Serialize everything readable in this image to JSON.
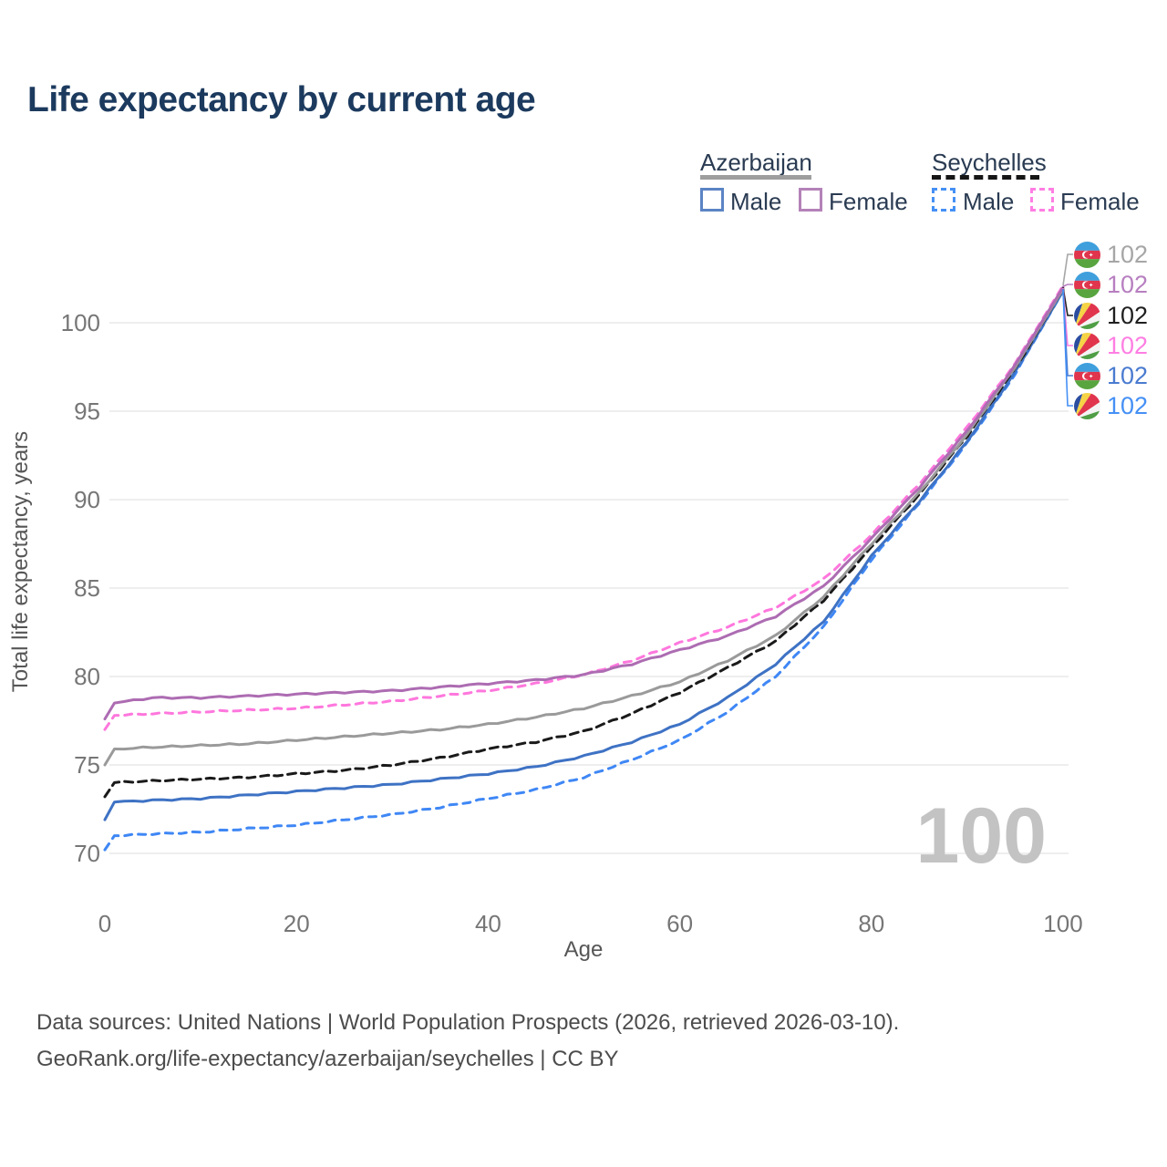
{
  "title": "Life expectancy by current age",
  "legend": {
    "groups": [
      {
        "country": "Azerbaijan",
        "line_style": "solid",
        "underline_color": "#9e9e9e",
        "items": [
          {
            "label": "Male",
            "color": "#5b84c4"
          },
          {
            "label": "Female",
            "color": "#b482b8"
          }
        ]
      },
      {
        "country": "Seychelles",
        "line_style": "dashed",
        "underline_color": "#161616",
        "items": [
          {
            "label": "Male",
            "color": "#4590f5"
          },
          {
            "label": "Female",
            "color": "#ff7ee3"
          }
        ]
      }
    ]
  },
  "watermark": "100",
  "end_labels": [
    {
      "flag": "azerbaijan",
      "value": "102",
      "color": "#a6a6a6"
    },
    {
      "flag": "azerbaijan",
      "value": "102",
      "color": "#b77fc0"
    },
    {
      "flag": "seychelles",
      "value": "102",
      "color": "#1f1f1f"
    },
    {
      "flag": "seychelles",
      "value": "102",
      "color": "#ff7ee3"
    },
    {
      "flag": "azerbaijan",
      "value": "102",
      "color": "#4a7bd0"
    },
    {
      "flag": "seychelles",
      "value": "102",
      "color": "#4590f5"
    }
  ],
  "footer": {
    "line1": "Data sources: United Nations | World Population Prospects (2026, retrieved 2026-03-10).",
    "line2": "GeoRank.org/life-expectancy/azerbaijan/seychelles | CC BY"
  },
  "chart_data": {
    "type": "line",
    "title": "Life expectancy by current age",
    "xlabel": "Age",
    "ylabel": "Total life expectancy, years",
    "x_axis": {
      "ticks": [
        0,
        20,
        40,
        60,
        80,
        100
      ],
      "range": [
        0,
        100
      ]
    },
    "y_axis": {
      "ticks": [
        70,
        75,
        80,
        85,
        90,
        95,
        100
      ],
      "range": [
        68.5,
        102.5
      ]
    },
    "grid": true,
    "legend_position": "top-right",
    "x": [
      0,
      1,
      5,
      10,
      15,
      20,
      25,
      30,
      35,
      40,
      45,
      50,
      55,
      60,
      65,
      70,
      75,
      80,
      85,
      90,
      95,
      100
    ],
    "series": [
      {
        "id": "azerbaijan-female",
        "name": "Azerbaijan Female",
        "color": "#ad6cb2",
        "dashed": false,
        "values": [
          77.6,
          78.5,
          78.8,
          78.8,
          78.9,
          79.0,
          79.1,
          79.2,
          79.4,
          79.6,
          79.8,
          80.1,
          80.7,
          81.5,
          82.3,
          83.4,
          85.1,
          87.8,
          90.7,
          93.9,
          97.6,
          102.0
        ]
      },
      {
        "id": "seychelles-female",
        "name": "Seychelles Female",
        "color": "#ff77dd",
        "dashed": true,
        "values": [
          77.0,
          77.8,
          77.9,
          78.0,
          78.1,
          78.2,
          78.4,
          78.6,
          78.9,
          79.2,
          79.6,
          80.1,
          80.9,
          81.9,
          82.8,
          83.9,
          85.5,
          88.0,
          90.9,
          94.1,
          97.7,
          102.1
        ]
      },
      {
        "id": "azerbaijan-total",
        "name": "Azerbaijan",
        "color": "#9a9a9a",
        "dashed": false,
        "values": [
          75.0,
          75.9,
          76.0,
          76.1,
          76.2,
          76.4,
          76.6,
          76.8,
          77.0,
          77.3,
          77.7,
          78.2,
          78.9,
          79.7,
          80.9,
          82.3,
          84.5,
          87.5,
          90.4,
          93.7,
          97.5,
          101.9
        ]
      },
      {
        "id": "seychelles-total",
        "name": "Seychelles",
        "color": "#1a1a1a",
        "dashed": true,
        "values": [
          73.2,
          74.0,
          74.1,
          74.2,
          74.3,
          74.5,
          74.7,
          75.0,
          75.4,
          75.9,
          76.3,
          76.9,
          77.9,
          79.1,
          80.5,
          82.0,
          84.3,
          87.3,
          90.3,
          93.6,
          97.4,
          101.9
        ]
      },
      {
        "id": "azerbaijan-male",
        "name": "Azerbaijan Male",
        "color": "#3e72c4",
        "dashed": false,
        "values": [
          71.9,
          72.9,
          73.0,
          73.1,
          73.3,
          73.5,
          73.7,
          73.9,
          74.2,
          74.5,
          74.9,
          75.5,
          76.3,
          77.3,
          78.8,
          80.7,
          83.1,
          86.8,
          89.9,
          93.3,
          97.2,
          101.8
        ]
      },
      {
        "id": "seychelles-male",
        "name": "Seychelles Male",
        "color": "#3f87f5",
        "dashed": true,
        "values": [
          70.2,
          71.0,
          71.1,
          71.2,
          71.4,
          71.6,
          71.9,
          72.2,
          72.6,
          73.1,
          73.6,
          74.3,
          75.3,
          76.4,
          78.0,
          80.0,
          82.8,
          86.6,
          89.8,
          93.2,
          97.1,
          101.8
        ]
      }
    ]
  }
}
